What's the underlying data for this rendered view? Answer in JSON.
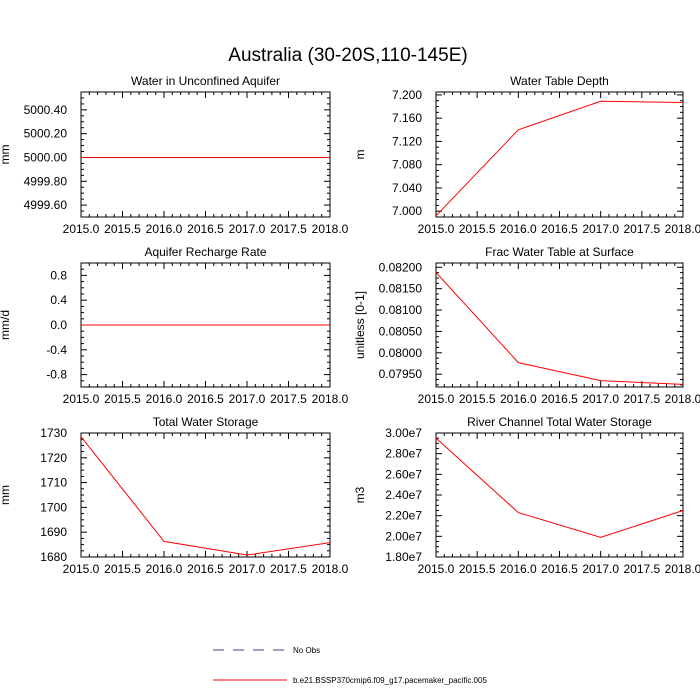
{
  "figure": {
    "title": "Australia (30-20S,110-145E)"
  },
  "legend": {
    "entries": [
      {
        "label": "No Obs",
        "color": "#4b3b8f",
        "dash": "dashed"
      },
      {
        "label": "b.e21.BSSP370cmip6.f09_g17.pacemaker_pacific.005",
        "color": "#ff0000",
        "dash": "solid"
      }
    ]
  },
  "chart_data": [
    {
      "type": "line",
      "title": "Water in Unconfined Aquifer",
      "ylabel": "mm",
      "xlim": [
        2015.0,
        2018.0
      ],
      "ylim": [
        4999.5,
        5000.55
      ],
      "xticks": [
        "2015.0",
        "2015.5",
        "2016.0",
        "2016.5",
        "2017.0",
        "2017.5",
        "2018.0"
      ],
      "xtick_values": [
        2015.0,
        2015.5,
        2016.0,
        2016.5,
        2017.0,
        2017.5,
        2018.0
      ],
      "yticks": [
        "4999.60",
        "4999.80",
        "5000.00",
        "5000.20",
        "5000.40"
      ],
      "ytick_values": [
        4999.6,
        4999.8,
        5000.0,
        5000.2,
        5000.4
      ],
      "series": [
        {
          "color": "#ff0000",
          "x": [
            2015.0,
            2016.0,
            2017.0,
            2018.0
          ],
          "y": [
            5000.0,
            5000.0,
            5000.0,
            5000.0
          ]
        }
      ]
    },
    {
      "type": "line",
      "title": "Water Table Depth",
      "ylabel": "m",
      "xlim": [
        2015.0,
        2018.0
      ],
      "ylim": [
        6.99,
        7.205
      ],
      "xticks": [
        "2015.0",
        "2015.5",
        "2016.0",
        "2016.5",
        "2017.0",
        "2017.5",
        "2018.0"
      ],
      "xtick_values": [
        2015.0,
        2015.5,
        2016.0,
        2016.5,
        2017.0,
        2017.5,
        2018.0
      ],
      "yticks": [
        "7.000",
        "7.040",
        "7.080",
        "7.120",
        "7.160",
        "7.200"
      ],
      "ytick_values": [
        7.0,
        7.04,
        7.08,
        7.12,
        7.16,
        7.2
      ],
      "series": [
        {
          "color": "#ff0000",
          "x": [
            2015.0,
            2016.0,
            2017.0,
            2018.0
          ],
          "y": [
            6.992,
            7.14,
            7.189,
            7.187
          ]
        }
      ]
    },
    {
      "type": "line",
      "title": "Aquifer Recharge Rate",
      "ylabel": "mm/d",
      "xlim": [
        2015.0,
        2018.0
      ],
      "ylim": [
        -1.0,
        1.0
      ],
      "xticks": [
        "2015.0",
        "2015.5",
        "2016.0",
        "2016.5",
        "2017.0",
        "2017.5",
        "2018.0"
      ],
      "xtick_values": [
        2015.0,
        2015.5,
        2016.0,
        2016.5,
        2017.0,
        2017.5,
        2018.0
      ],
      "yticks": [
        "-0.8",
        "-0.4",
        "0.0",
        "0.4",
        "0.8"
      ],
      "ytick_values": [
        -0.8,
        -0.4,
        0.0,
        0.4,
        0.8
      ],
      "series": [
        {
          "color": "#ff0000",
          "x": [
            2015.0,
            2016.0,
            2017.0,
            2018.0
          ],
          "y": [
            0.0,
            0.0,
            0.0,
            0.0
          ]
        }
      ]
    },
    {
      "type": "line",
      "title": "Frac Water Table at Surface",
      "ylabel": "unitless [0-1]",
      "xlim": [
        2015.0,
        2018.0
      ],
      "ylim": [
        0.0792,
        0.0821
      ],
      "xticks": [
        "2015.0",
        "2015.5",
        "2016.0",
        "2016.5",
        "2017.0",
        "2017.5",
        "2018.0"
      ],
      "xtick_values": [
        2015.0,
        2015.5,
        2016.0,
        2016.5,
        2017.0,
        2017.5,
        2018.0
      ],
      "yticks": [
        "0.07950",
        "0.08000",
        "0.08050",
        "0.08100",
        "0.08150",
        "0.08200"
      ],
      "ytick_values": [
        0.0795,
        0.08,
        0.0805,
        0.081,
        0.0815,
        0.082
      ],
      "series": [
        {
          "color": "#ff0000",
          "x": [
            2015.0,
            2016.0,
            2017.0,
            2018.0
          ],
          "y": [
            0.08188,
            0.07977,
            0.07935,
            0.07926
          ]
        }
      ]
    },
    {
      "type": "line",
      "title": "Total Water Storage",
      "ylabel": "mm",
      "xlim": [
        2015.0,
        2018.0
      ],
      "ylim": [
        1680.0,
        1730.0
      ],
      "xticks": [
        "2015.0",
        "2015.5",
        "2016.0",
        "2016.5",
        "2017.0",
        "2017.5",
        "2018.0"
      ],
      "xtick_values": [
        2015.0,
        2015.5,
        2016.0,
        2016.5,
        2017.0,
        2017.5,
        2018.0
      ],
      "yticks": [
        "1680",
        "1690",
        "1700",
        "1710",
        "1720",
        "1730"
      ],
      "ytick_values": [
        1680,
        1690,
        1700,
        1710,
        1720,
        1730
      ],
      "series": [
        {
          "color": "#ff0000",
          "x": [
            2015.0,
            2016.0,
            2017.0,
            2018.0
          ],
          "y": [
            1728.5,
            1686.3,
            1680.8,
            1685.8
          ]
        }
      ]
    },
    {
      "type": "line",
      "title": "River Channel Total Water Storage",
      "ylabel": "m3",
      "xlim": [
        2015.0,
        2018.0
      ],
      "ylim": [
        18000000,
        30000000
      ],
      "xticks": [
        "2015.0",
        "2015.5",
        "2016.0",
        "2016.5",
        "2017.0",
        "2017.5",
        "2018.0"
      ],
      "xtick_values": [
        2015.0,
        2015.5,
        2016.0,
        2016.5,
        2017.0,
        2017.5,
        2018.0
      ],
      "yticks": [
        "1.80e7",
        "2.00e7",
        "2.20e7",
        "2.40e7",
        "2.60e7",
        "2.80e7",
        "3.00e7"
      ],
      "ytick_values": [
        18000000,
        20000000,
        22000000,
        24000000,
        26000000,
        28000000,
        30000000
      ],
      "series": [
        {
          "color": "#ff0000",
          "x": [
            2015.0,
            2016.0,
            2017.0,
            2018.0
          ],
          "y": [
            29500000,
            22300000,
            19900000,
            22500000
          ]
        }
      ]
    }
  ]
}
